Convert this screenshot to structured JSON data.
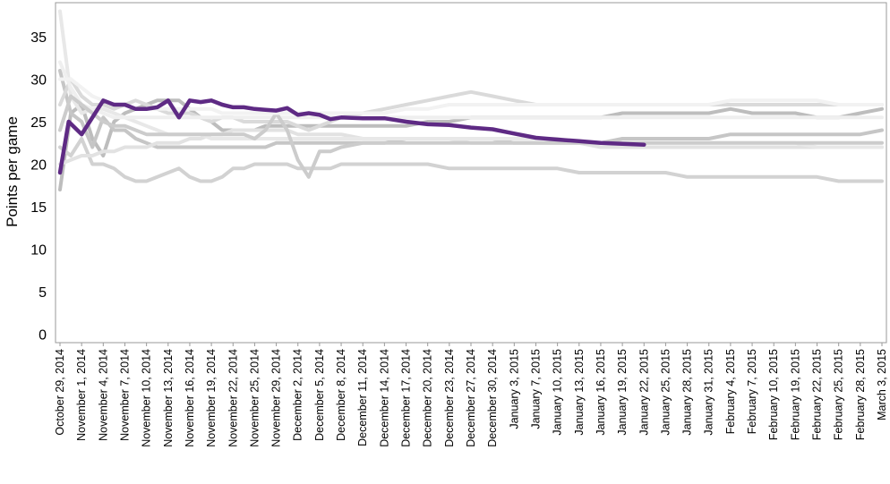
{
  "chart_data": {
    "type": "line",
    "title": "",
    "xlabel": "",
    "ylabel": "Points per game",
    "ylim": [
      -1,
      39
    ],
    "yticks": [
      0,
      5,
      10,
      15,
      20,
      25,
      30,
      35
    ],
    "grid": false,
    "legend": "none",
    "categories": [
      "October 29, 2014",
      "November 1, 2014",
      "November 4, 2014",
      "November 7, 2014",
      "November 10, 2014",
      "November 13, 2014",
      "November 16, 2014",
      "November 19, 2014",
      "November 22, 2014",
      "November 25, 2014",
      "November 29, 2014",
      "December 2, 2014",
      "December 5, 2014",
      "December 8, 2014",
      "December 11, 2014",
      "December 14, 2014",
      "December 17, 2014",
      "December 20, 2014",
      "December 23, 2014",
      "December 27, 2014",
      "December 30, 2014",
      "January 3, 2015",
      "January 7, 2015",
      "January 10, 2015",
      "January 13, 2015",
      "January 16, 2015",
      "January 19, 2015",
      "January 22, 2015",
      "January 25, 2015",
      "January 28, 2015",
      "January 31, 2015",
      "February 4, 2015",
      "February 7, 2015",
      "February 10, 2015",
      "February 19, 2015",
      "February 22, 2015",
      "February 25, 2015",
      "February 28, 2015",
      "March 3, 2015"
    ],
    "colors": {
      "highlight": "#5e2a84",
      "others": [
        "#bdbdbd",
        "#c6c6c6",
        "#d2d2d2",
        "#dadada",
        "#e2e2e2",
        "#e8e8e8",
        "#efefef",
        "#cccccc",
        "#f2f2f2"
      ]
    },
    "series": [
      {
        "highlight": false,
        "color": "#bdbdbd",
        "x": [
          0,
          0.5,
          1,
          1.5,
          2,
          2.5,
          3,
          3.5,
          4,
          4.5,
          5,
          5.5,
          6,
          6.5,
          7,
          7.5,
          8,
          8.5,
          9,
          9.5,
          10,
          10.5,
          11,
          11.5,
          12,
          12.5,
          13,
          14,
          15,
          16,
          17,
          18,
          19,
          20,
          21,
          22,
          23,
          24,
          25,
          26,
          27,
          28,
          29,
          30,
          31,
          32,
          33,
          34,
          35,
          36,
          37,
          38
        ],
        "y": [
          17,
          26,
          27,
          23,
          21,
          25,
          26,
          26.5,
          27,
          27.5,
          27.5,
          27.5,
          26.5,
          25.5,
          25,
          24,
          24,
          24,
          24,
          24.5,
          24.5,
          24.5,
          24.5,
          24.5,
          24.5,
          24.5,
          24.5,
          24.5,
          24.5,
          24.5,
          25,
          25,
          25.5,
          25.5,
          25.5,
          25.5,
          25.5,
          25.5,
          25.5,
          26,
          26,
          26,
          26,
          26,
          26.5,
          26,
          26,
          26,
          25.5,
          25.5,
          26,
          26.5
        ]
      },
      {
        "highlight": false,
        "color": "#c6c6c6",
        "x": [
          0,
          0.5,
          1,
          1.5,
          2,
          2.5,
          3,
          3.5,
          4,
          4.5,
          5,
          5.5,
          6,
          6.5,
          7,
          7.5,
          8,
          8.5,
          9,
          9.5,
          10,
          10.5,
          11,
          11.5,
          12,
          12.5,
          13,
          14,
          15,
          16,
          17,
          18,
          19,
          20,
          21,
          22,
          23,
          24,
          25,
          26,
          27,
          28,
          29,
          30,
          31,
          32,
          33,
          34,
          35,
          36,
          37,
          38
        ],
        "y": [
          31,
          26,
          25,
          22,
          25.5,
          24,
          24,
          23,
          22.5,
          22,
          22,
          22,
          22,
          22,
          22,
          22,
          22,
          22,
          22,
          22,
          22.5,
          22.5,
          22.5,
          22.5,
          22.5,
          22.5,
          22.5,
          22.5,
          22.5,
          23,
          23,
          23,
          23,
          23,
          22.5,
          22.5,
          22.5,
          22.5,
          22.5,
          23,
          23,
          23,
          23,
          23,
          23.5,
          23.5,
          23.5,
          23.5,
          23.5,
          23.5,
          23.5,
          24
        ]
      },
      {
        "highlight": false,
        "color": "#d2d2d2",
        "x": [
          0,
          0.5,
          1,
          1.5,
          2,
          2.5,
          3,
          3.5,
          4,
          4.5,
          5,
          5.5,
          6,
          6.5,
          7,
          7.5,
          8,
          8.5,
          9,
          9.5,
          10,
          10.5,
          11,
          11.5,
          12,
          12.5,
          13,
          14,
          15,
          16,
          17,
          18,
          19,
          20,
          21,
          22,
          23,
          24,
          25,
          26,
          27,
          28,
          29,
          30,
          31,
          32,
          33,
          34,
          35,
          36,
          37,
          38
        ],
        "y": [
          22,
          21,
          23,
          20,
          20,
          19.5,
          18.5,
          18,
          18,
          18.5,
          19,
          19.5,
          18.5,
          18,
          18,
          18.5,
          19.5,
          19.5,
          20,
          20,
          20,
          20,
          19.5,
          19.5,
          19.5,
          19.5,
          20,
          20,
          20,
          20,
          20,
          19.5,
          19.5,
          19.5,
          19.5,
          19.5,
          19.5,
          19,
          19,
          19,
          19,
          19,
          18.5,
          18.5,
          18.5,
          18.5,
          18.5,
          18.5,
          18.5,
          18,
          18,
          18
        ]
      },
      {
        "highlight": false,
        "color": "#dadada",
        "x": [
          0,
          0.5,
          1,
          1.5,
          2,
          2.5,
          3,
          3.5,
          4,
          4.5,
          5,
          5.5,
          6,
          6.5,
          7,
          7.5,
          8,
          8.5,
          9,
          9.5,
          10,
          10.5,
          11,
          11.5,
          12,
          12.5,
          13,
          14,
          15,
          16,
          17,
          18,
          19,
          20,
          21,
          22,
          23,
          24,
          25,
          26,
          27,
          28,
          29,
          30,
          31,
          32,
          33,
          34,
          35,
          36,
          37,
          38
        ],
        "y": [
          27,
          30,
          28,
          27,
          27,
          26.5,
          27,
          27.5,
          27,
          26.5,
          26,
          26,
          26,
          25.5,
          25,
          25.5,
          25.5,
          25,
          25,
          25,
          25,
          25,
          24.5,
          24,
          24.5,
          25,
          25.5,
          26,
          26.5,
          27,
          27.5,
          28,
          28.5,
          28,
          27.5,
          27,
          27,
          27,
          27,
          27,
          27,
          27,
          27,
          27,
          27,
          27,
          27,
          27,
          27,
          27,
          27,
          27
        ]
      },
      {
        "highlight": false,
        "color": "#e2e2e2",
        "x": [
          0,
          0.5,
          1,
          1.5,
          2,
          2.5,
          3,
          3.5,
          4,
          4.5,
          5,
          5.5,
          6,
          6.5,
          7,
          7.5,
          8,
          8.5,
          9,
          9.5,
          10,
          10.5,
          11,
          11.5,
          12,
          12.5,
          13,
          14,
          15,
          16,
          17,
          18,
          19,
          20,
          21,
          22,
          23,
          24,
          25,
          26,
          27,
          28,
          29,
          30,
          31,
          32,
          33,
          34,
          35,
          36,
          37,
          38
        ],
        "y": [
          20,
          20.5,
          21,
          21,
          21.5,
          21.5,
          22,
          22,
          22,
          22.5,
          22.5,
          22.5,
          23,
          23,
          23.5,
          23.5,
          24,
          24,
          24,
          24,
          24,
          24,
          23.5,
          23.5,
          23.5,
          23.5,
          23.5,
          23,
          23,
          23,
          23,
          23,
          22.5,
          22.5,
          22.5,
          22.5,
          22.5,
          22.5,
          22,
          22,
          22,
          22,
          22,
          22,
          22,
          22,
          22,
          22,
          22,
          22,
          22,
          22
        ]
      },
      {
        "highlight": false,
        "color": "#e8e8e8",
        "x": [
          0,
          0.5,
          1,
          1.5,
          2,
          2.5,
          3,
          3.5,
          4,
          4.5,
          5,
          5.5,
          6,
          6.5,
          7,
          7.5,
          8,
          8.5,
          9,
          9.5,
          10,
          10.5,
          11,
          11.5,
          12,
          12.5,
          13,
          14,
          15,
          16,
          17,
          18,
          19,
          20,
          21,
          22,
          23,
          24,
          25,
          26,
          27,
          28,
          29,
          30,
          31,
          32,
          33,
          34,
          35,
          36,
          37,
          38
        ],
        "y": [
          38,
          28,
          26,
          26.5,
          26.5,
          26,
          25.5,
          25,
          24.5,
          24,
          23.5,
          23.5,
          23.5,
          23.5,
          23,
          23,
          23,
          23,
          23,
          23,
          23,
          23,
          23,
          23,
          23,
          23,
          23,
          23,
          23,
          23,
          23,
          23,
          23,
          23,
          23,
          23,
          23,
          22.5,
          22.5,
          22.5,
          22.5,
          22.5,
          22.5,
          22.5,
          22.5,
          22.5,
          22.5,
          22.5,
          22,
          22,
          22,
          22
        ]
      },
      {
        "highlight": false,
        "color": "#efefef",
        "x": [
          0,
          0.5,
          1,
          1.5,
          2,
          2.5,
          3,
          3.5,
          4,
          4.5,
          5,
          5.5,
          6,
          6.5,
          7,
          7.5,
          8,
          8.5,
          9,
          9.5,
          10,
          10.5,
          11,
          11.5,
          12,
          12.5,
          13,
          14,
          15,
          16,
          17,
          18,
          19,
          20,
          21,
          22,
          23,
          24,
          25,
          26,
          27,
          28,
          29,
          30,
          31,
          32,
          33,
          34,
          35,
          36,
          37,
          38
        ],
        "y": [
          32,
          29,
          27,
          26.5,
          26,
          25.5,
          25.5,
          25.5,
          25.5,
          25.5,
          25.5,
          25.5,
          25.5,
          25.5,
          25.5,
          25.5,
          25.5,
          25.5,
          25.5,
          25.5,
          25.5,
          25.5,
          25.5,
          25.5,
          25.5,
          25.5,
          25.5,
          25.5,
          25.5,
          25.5,
          25.5,
          25.5,
          25.5,
          25.5,
          25.5,
          25.5,
          25.5,
          25.5,
          25.5,
          25.5,
          25.5,
          25.5,
          25.5,
          25.5,
          25.5,
          25.5,
          25.5,
          25.5,
          25.5,
          25.5,
          25.5,
          25.5
        ]
      },
      {
        "highlight": false,
        "color": "#cccccc",
        "x": [
          0,
          0.5,
          1,
          1.5,
          2,
          2.5,
          3,
          3.5,
          4,
          4.5,
          5,
          5.5,
          6,
          6.5,
          7,
          7.5,
          8,
          8.5,
          9,
          9.5,
          10,
          10.5,
          11,
          11.5,
          12,
          12.5,
          13,
          14,
          15,
          16,
          17,
          18,
          19,
          20,
          21,
          22,
          23,
          24,
          25,
          26,
          27,
          28,
          29,
          30,
          31,
          32,
          33,
          34,
          35,
          36,
          37,
          38
        ],
        "y": [
          24,
          28,
          27,
          26,
          25,
          24.5,
          24.5,
          24,
          23.5,
          23.5,
          23.5,
          23.5,
          23.5,
          23.5,
          23.5,
          23.5,
          23.5,
          23.5,
          23,
          24,
          26,
          24,
          20.5,
          18.5,
          21.5,
          21.5,
          22,
          22.5,
          22.5,
          22.5,
          22.5,
          22.5,
          22.5,
          22.5,
          22.5,
          22.5,
          22.5,
          22.5,
          22.5,
          22.5,
          22.5,
          22.5,
          22.5,
          22.5,
          22.5,
          22.5,
          22.5,
          22.5,
          22.5,
          22.5,
          22.5,
          22.5
        ]
      },
      {
        "highlight": false,
        "color": "#f2f2f2",
        "x": [
          0,
          0.5,
          1,
          1.5,
          2,
          2.5,
          3,
          3.5,
          4,
          4.5,
          5,
          5.5,
          6,
          6.5,
          7,
          7.5,
          8,
          8.5,
          9,
          9.5,
          10,
          10.5,
          11,
          11.5,
          12,
          12.5,
          13,
          14,
          15,
          16,
          17,
          18,
          19,
          20,
          21,
          22,
          23,
          24,
          25,
          26,
          27,
          28,
          29,
          30,
          31,
          32,
          33,
          34,
          35,
          36,
          37,
          38
        ],
        "y": [
          30,
          30,
          29,
          28,
          27.5,
          27,
          27,
          26.5,
          26.5,
          26.5,
          26.5,
          26.5,
          26.5,
          26.5,
          26.5,
          26,
          26,
          26,
          26,
          26,
          26,
          26,
          26,
          26,
          26,
          26,
          26,
          26,
          26,
          26.5,
          26.5,
          27,
          27,
          27,
          27,
          27,
          27,
          27,
          27,
          27,
          27,
          27,
          27,
          27,
          27.5,
          27.5,
          27.5,
          27.5,
          27.5,
          27,
          27,
          27
        ]
      },
      {
        "highlight": true,
        "color": "#5e2a84",
        "x": [
          0,
          0.4,
          1,
          1.5,
          2,
          2.5,
          3,
          3.5,
          4,
          4.5,
          5,
          5.5,
          6,
          6.5,
          7,
          7.5,
          8,
          8.5,
          9,
          9.5,
          10,
          10.5,
          11,
          11.5,
          12,
          12.5,
          13,
          14,
          15,
          16,
          17,
          18,
          19,
          20,
          21,
          22,
          23,
          24,
          25,
          26,
          27
        ],
        "y": [
          19,
          25,
          23.5,
          25.5,
          27.5,
          27,
          27,
          26.5,
          26.5,
          26.7,
          27.5,
          25.5,
          27.5,
          27.3,
          27.5,
          27,
          26.7,
          26.7,
          26.5,
          26.4,
          26.3,
          26.6,
          25.8,
          26,
          25.8,
          25.3,
          25.5,
          25.4,
          25.4,
          25,
          24.7,
          24.6,
          24.3,
          24.1,
          23.6,
          23.1,
          22.9,
          22.7,
          22.5,
          22.4,
          22.3
        ]
      }
    ]
  }
}
